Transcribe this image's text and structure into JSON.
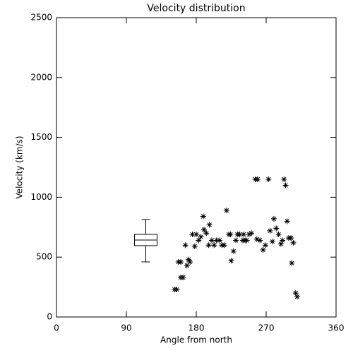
{
  "chart_data": {
    "type": "scatter",
    "title": "Velocity distribution",
    "xlabel": "Angle from north",
    "ylabel": "Velocity (km/s)",
    "xlim": [
      0,
      360
    ],
    "xticks": [
      0,
      90,
      180,
      270,
      360
    ],
    "ylim": [
      0,
      2500
    ],
    "yticks": [
      0,
      500,
      1000,
      1500,
      2000,
      2500
    ],
    "color": "#000000",
    "x": [
      152,
      155,
      157,
      160,
      160,
      163,
      166,
      168,
      170,
      172,
      175,
      178,
      180,
      183,
      186,
      189,
      190,
      193,
      196,
      197,
      200,
      203,
      206,
      210,
      213,
      216,
      219,
      222,
      225,
      228,
      224,
      231,
      233,
      236,
      240,
      243,
      248,
      251,
      241,
      245,
      256,
      259,
      258,
      262,
      266,
      269,
      273,
      275,
      278,
      280,
      283,
      286,
      289,
      291,
      293,
      295,
      297,
      299,
      302,
      303,
      305,
      308,
      310
    ],
    "values": [
      230,
      230,
      460,
      460,
      330,
      330,
      600,
      430,
      480,
      460,
      690,
      590,
      690,
      640,
      670,
      840,
      730,
      700,
      600,
      770,
      640,
      600,
      640,
      640,
      600,
      600,
      890,
      690,
      470,
      550,
      690,
      640,
      690,
      690,
      640,
      640,
      690,
      700,
      690,
      640,
      1150,
      1150,
      650,
      640,
      560,
      600,
      1150,
      720,
      630,
      820,
      740,
      690,
      610,
      640,
      1150,
      1100,
      800,
      660,
      660,
      450,
      620,
      200,
      170
    ],
    "box": {
      "x": 115,
      "whislo": 460,
      "q1": 596,
      "med": 643,
      "q3": 690,
      "whishi": 814
    }
  }
}
